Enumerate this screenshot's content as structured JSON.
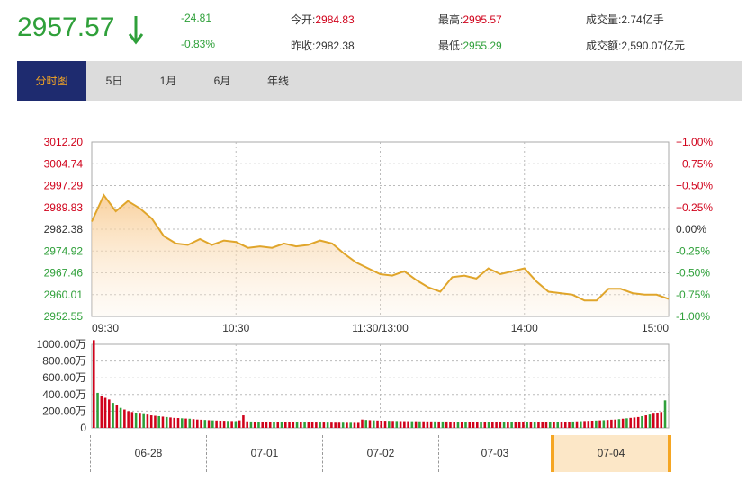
{
  "header": {
    "price": "2957.57",
    "change": "-24.81",
    "change_pct": "-0.83%",
    "open_label": "今开:",
    "open_value": "2984.83",
    "prev_close_label": "昨收:",
    "prev_close_value": "2982.38",
    "high_label": "最高:",
    "high_value": "2995.57",
    "low_label": "最低:",
    "low_value": "2955.29",
    "volume_label": "成交量:",
    "volume_value": "2.74亿手",
    "amount_label": "成交额:",
    "amount_value": "2,590.07亿元"
  },
  "tabs": [
    "分时图",
    "5日",
    "1月",
    "6月",
    "年线"
  ],
  "active_tab": "分时图",
  "colors": {
    "up": "#d0021b",
    "down": "#2fa03a",
    "line": "#e0a52a",
    "tab_active_bg": "#1e2b6f",
    "tab_active_text": "#f5a623"
  },
  "icons": {
    "price_arrow": "arrow-down-icon"
  },
  "date_bar": {
    "dates": [
      "06-28",
      "07-01",
      "07-02",
      "07-03",
      "07-04"
    ],
    "active": "07-04"
  },
  "chart_data": [
    {
      "type": "line",
      "prev_close": 2982.38,
      "ylim": [
        2952.55,
        3012.2
      ],
      "y_ticks_left": [
        "3012.20",
        "3004.74",
        "2997.29",
        "2989.83",
        "2982.38",
        "2974.92",
        "2967.46",
        "2960.01",
        "2952.55"
      ],
      "y_ticks_right": [
        "+1.00%",
        "+0.75%",
        "+0.50%",
        "+0.25%",
        "0.00%",
        "-0.25%",
        "-0.50%",
        "-0.75%",
        "-1.00%"
      ],
      "x_ticks": [
        "09:30",
        "10:30",
        "11:30/13:00",
        "14:00",
        "15:00"
      ],
      "series": [
        {
          "x": [
            0,
            5,
            10,
            15,
            20,
            25,
            30,
            35,
            40,
            45,
            50,
            55,
            60,
            65,
            70,
            75,
            80,
            85,
            90,
            95,
            100,
            105,
            110,
            115,
            120,
            125,
            130,
            135,
            140,
            145,
            150,
            155,
            160,
            165,
            170,
            175,
            180,
            185,
            190,
            195,
            200,
            205,
            210,
            215,
            220,
            225,
            230,
            235,
            240
          ],
          "values": [
            2985.0,
            2994.0,
            2988.5,
            2992.0,
            2989.5,
            2986.0,
            2980.0,
            2977.5,
            2977.0,
            2979.0,
            2977.0,
            2978.5,
            2978.0,
            2976.0,
            2976.5,
            2976.0,
            2977.5,
            2976.5,
            2977.0,
            2978.5,
            2977.5,
            2974.0,
            2971.0,
            2969.0,
            2967.0,
            2966.5,
            2968.0,
            2965.0,
            2962.5,
            2961.0,
            2966.0,
            2966.5,
            2965.5,
            2969.0,
            2967.0,
            2968.0,
            2969.0,
            2964.5,
            2961.0,
            2960.5,
            2960.0,
            2958.0,
            2958.0,
            2962.0,
            2962.0,
            2960.5,
            2960.0,
            2960.0,
            2958.5
          ]
        }
      ]
    },
    {
      "type": "bar",
      "ylim": [
        0,
        1000
      ],
      "y_ticks": [
        "1000.00万",
        "800.00万",
        "600.00万",
        "400.00万",
        "200.00万",
        "0"
      ],
      "series": [
        {
          "name": "volume",
          "values": [
            1050,
            420,
            380,
            360,
            340,
            300,
            270,
            240,
            220,
            200,
            190,
            180,
            170,
            165,
            160,
            150,
            145,
            140,
            135,
            130,
            125,
            120,
            118,
            115,
            112,
            110,
            105,
            100,
            98,
            95,
            92,
            90,
            88,
            86,
            85,
            83,
            82,
            80,
            90,
            150,
            78,
            76,
            75,
            74,
            73,
            72,
            71,
            70,
            70,
            69,
            68,
            68,
            67,
            67,
            66,
            66,
            65,
            65,
            64,
            64,
            64,
            63,
            63,
            62,
            62,
            62,
            61,
            61,
            60,
            60,
            100,
            95,
            92,
            90,
            88,
            86,
            85,
            84,
            83,
            82,
            81,
            80,
            80,
            79,
            79,
            78,
            78,
            77,
            77,
            77,
            76,
            76,
            76,
            75,
            75,
            75,
            74,
            74,
            74,
            74,
            73,
            73,
            73,
            73,
            72,
            72,
            72,
            72,
            72,
            71,
            71,
            71,
            71,
            71,
            71,
            71,
            71,
            70,
            70,
            70,
            70,
            70,
            70,
            72,
            74,
            76,
            78,
            80,
            82,
            84,
            86,
            88,
            90,
            92,
            95,
            98,
            100,
            105,
            110,
            115,
            120,
            125,
            130,
            140,
            150,
            160,
            170,
            180,
            190,
            330
          ]
        }
      ]
    }
  ]
}
